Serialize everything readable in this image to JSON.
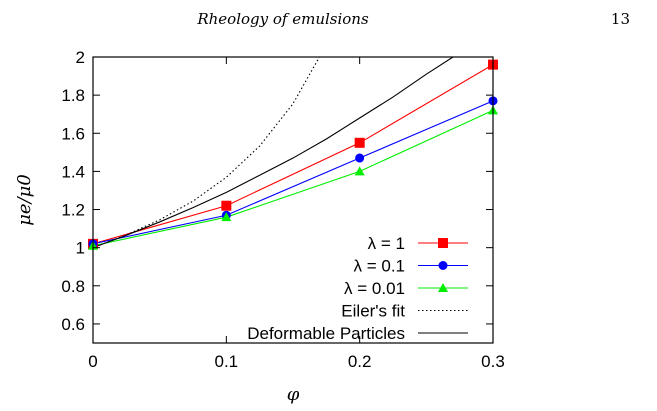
{
  "header": {
    "running_title": "Rheology of emulsions",
    "page_number": "13"
  },
  "chart_data": {
    "type": "line",
    "xlabel": "φ",
    "ylabel": "μe/μ0",
    "xlim": [
      0,
      0.3
    ],
    "ylim": [
      0.5,
      2
    ],
    "xticks": [
      "0",
      "0.1",
      "0.2",
      "0.3"
    ],
    "yticks": [
      "0.6",
      "0.8",
      "1",
      "1.2",
      "1.4",
      "1.6",
      "1.8",
      "2"
    ],
    "grid": false,
    "legend_position": "bottom-right",
    "series": [
      {
        "name": "λ = 1",
        "color": "#ff0000",
        "marker": "square",
        "style": "solid",
        "x": [
          0,
          0.1,
          0.2,
          0.3
        ],
        "y": [
          1.02,
          1.22,
          1.55,
          1.96
        ]
      },
      {
        "name": "λ = 0.1",
        "color": "#0000ff",
        "marker": "circle",
        "style": "solid",
        "x": [
          0,
          0.1,
          0.2,
          0.3
        ],
        "y": [
          1.02,
          1.17,
          1.47,
          1.77
        ]
      },
      {
        "name": "λ = 0.01",
        "color": "#00ee00",
        "marker": "triangle",
        "style": "solid",
        "x": [
          0,
          0.1,
          0.2,
          0.3
        ],
        "y": [
          1.01,
          1.16,
          1.4,
          1.72
        ]
      },
      {
        "name": "Eiler's fit",
        "color": "#000000",
        "marker": "none",
        "style": "dotted",
        "x": [
          0,
          0.025,
          0.05,
          0.075,
          0.1,
          0.125,
          0.15,
          0.175
        ],
        "y": [
          1.0,
          1.067,
          1.146,
          1.244,
          1.369,
          1.533,
          1.755,
          2.064
        ]
      },
      {
        "name": "Deformable Particles",
        "color": "#000000",
        "marker": "none",
        "style": "solid",
        "x": [
          0,
          0.025,
          0.05,
          0.075,
          0.1,
          0.125,
          0.15,
          0.175,
          0.2,
          0.225,
          0.25,
          0.27
        ],
        "y": [
          1.0,
          1.065,
          1.135,
          1.21,
          1.29,
          1.38,
          1.47,
          1.57,
          1.68,
          1.79,
          1.91,
          2.0
        ]
      }
    ]
  }
}
